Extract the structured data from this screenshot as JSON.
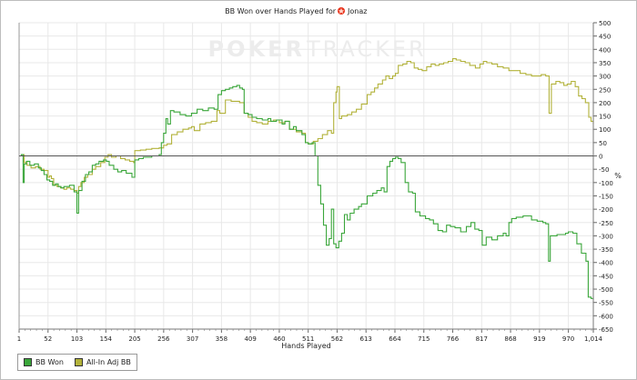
{
  "chart_data": {
    "type": "line",
    "title": "BB Won over Hands Played for",
    "player": "Jonaz",
    "xlabel": "Hands Played",
    "ylabel": "%",
    "watermark": {
      "left": "POKER",
      "right": "TRACKER"
    },
    "xlim": [
      1,
      1014
    ],
    "ylim": [
      -650,
      500
    ],
    "x_ticks": [
      1,
      52,
      103,
      154,
      205,
      256,
      307,
      358,
      409,
      460,
      511,
      562,
      613,
      664,
      715,
      766,
      817,
      868,
      919,
      970,
      1014
    ],
    "x_tick_labels": [
      "1",
      "52",
      "103",
      "154",
      "205",
      "256",
      "307",
      "358",
      "409",
      "460",
      "511",
      "562",
      "613",
      "664",
      "715",
      "766",
      "817",
      "868",
      "919",
      "970",
      "1,014"
    ],
    "y_ticks": [
      500,
      450,
      400,
      350,
      300,
      250,
      200,
      150,
      100,
      50,
      0,
      -50,
      -100,
      -150,
      -200,
      -250,
      -300,
      -350,
      -400,
      -450,
      -500,
      -550,
      -600,
      -650
    ],
    "grid": true,
    "legend_position": "bottom-left",
    "colors": {
      "bb_won": "#3aa63a",
      "all_in_adj": "#b2b23a",
      "zero_line": "#555555"
    },
    "series": [
      {
        "name": "BB Won",
        "color": "#3aa63a",
        "points": [
          [
            1,
            0
          ],
          [
            5,
            5
          ],
          [
            8,
            -100
          ],
          [
            10,
            -30
          ],
          [
            14,
            -20
          ],
          [
            20,
            -35
          ],
          [
            28,
            -30
          ],
          [
            35,
            -45
          ],
          [
            40,
            -55
          ],
          [
            45,
            -70
          ],
          [
            50,
            -90
          ],
          [
            55,
            -95
          ],
          [
            60,
            -110
          ],
          [
            65,
            -105
          ],
          [
            70,
            -115
          ],
          [
            75,
            -120
          ],
          [
            80,
            -115
          ],
          [
            90,
            -110
          ],
          [
            98,
            -135
          ],
          [
            103,
            -215
          ],
          [
            106,
            -130
          ],
          [
            112,
            -95
          ],
          [
            118,
            -70
          ],
          [
            124,
            -60
          ],
          [
            130,
            -35
          ],
          [
            136,
            -30
          ],
          [
            142,
            -20
          ],
          [
            150,
            -15
          ],
          [
            155,
            -20
          ],
          [
            160,
            -35
          ],
          [
            168,
            -50
          ],
          [
            175,
            -60
          ],
          [
            182,
            -55
          ],
          [
            190,
            -65
          ],
          [
            200,
            -80
          ],
          [
            205,
            -15
          ],
          [
            212,
            -10
          ],
          [
            220,
            -5
          ],
          [
            235,
            0
          ],
          [
            248,
            5
          ],
          [
            252,
            50
          ],
          [
            256,
            85
          ],
          [
            260,
            140
          ],
          [
            263,
            120
          ],
          [
            268,
            170
          ],
          [
            274,
            165
          ],
          [
            285,
            155
          ],
          [
            295,
            150
          ],
          [
            305,
            160
          ],
          [
            315,
            175
          ],
          [
            325,
            170
          ],
          [
            335,
            180
          ],
          [
            345,
            175
          ],
          [
            352,
            230
          ],
          [
            358,
            245
          ],
          [
            365,
            250
          ],
          [
            372,
            255
          ],
          [
            378,
            260
          ],
          [
            385,
            265
          ],
          [
            390,
            255
          ],
          [
            395,
            250
          ],
          [
            398,
            160
          ],
          [
            405,
            155
          ],
          [
            412,
            145
          ],
          [
            420,
            140
          ],
          [
            430,
            135
          ],
          [
            440,
            140
          ],
          [
            445,
            130
          ],
          [
            455,
            135
          ],
          [
            465,
            120
          ],
          [
            470,
            130
          ],
          [
            478,
            100
          ],
          [
            485,
            110
          ],
          [
            490,
            95
          ],
          [
            500,
            80
          ],
          [
            506,
            50
          ],
          [
            511,
            45
          ],
          [
            518,
            50
          ],
          [
            523,
            0
          ],
          [
            528,
            -110
          ],
          [
            533,
            -180
          ],
          [
            538,
            -260
          ],
          [
            543,
            -335
          ],
          [
            548,
            -310
          ],
          [
            552,
            -200
          ],
          [
            556,
            -330
          ],
          [
            560,
            -345
          ],
          [
            565,
            -320
          ],
          [
            570,
            -290
          ],
          [
            575,
            -220
          ],
          [
            580,
            -240
          ],
          [
            585,
            -215
          ],
          [
            592,
            -200
          ],
          [
            600,
            -190
          ],
          [
            605,
            -180
          ],
          [
            615,
            -150
          ],
          [
            625,
            -140
          ],
          [
            632,
            -130
          ],
          [
            640,
            -120
          ],
          [
            645,
            -135
          ],
          [
            650,
            -40
          ],
          [
            655,
            -20
          ],
          [
            660,
            -10
          ],
          [
            665,
            -5
          ],
          [
            670,
            -10
          ],
          [
            675,
            -25
          ],
          [
            682,
            -100
          ],
          [
            688,
            -135
          ],
          [
            695,
            -140
          ],
          [
            700,
            -210
          ],
          [
            708,
            -225
          ],
          [
            718,
            -235
          ],
          [
            725,
            -240
          ],
          [
            732,
            -255
          ],
          [
            740,
            -280
          ],
          [
            748,
            -285
          ],
          [
            755,
            -260
          ],
          [
            762,
            -265
          ],
          [
            770,
            -270
          ],
          [
            780,
            -285
          ],
          [
            790,
            -265
          ],
          [
            798,
            -250
          ],
          [
            805,
            -275
          ],
          [
            812,
            -280
          ],
          [
            818,
            -335
          ],
          [
            825,
            -305
          ],
          [
            835,
            -315
          ],
          [
            845,
            -300
          ],
          [
            855,
            -290
          ],
          [
            860,
            -300
          ],
          [
            865,
            -250
          ],
          [
            870,
            -235
          ],
          [
            878,
            -230
          ],
          [
            890,
            -225
          ],
          [
            905,
            -240
          ],
          [
            915,
            -245
          ],
          [
            925,
            -250
          ],
          [
            930,
            -255
          ],
          [
            935,
            -395
          ],
          [
            938,
            -300
          ],
          [
            950,
            -295
          ],
          [
            965,
            -290
          ],
          [
            970,
            -285
          ],
          [
            978,
            -290
          ],
          [
            985,
            -330
          ],
          [
            993,
            -365
          ],
          [
            997,
            -365
          ],
          [
            1001,
            -395
          ],
          [
            1005,
            -530
          ],
          [
            1010,
            -535
          ],
          [
            1014,
            -540
          ]
        ]
      },
      {
        "name": "All-In Adj BB",
        "color": "#b2b23a",
        "points": [
          [
            1,
            0
          ],
          [
            5,
            5
          ],
          [
            10,
            -25
          ],
          [
            15,
            -35
          ],
          [
            22,
            -45
          ],
          [
            30,
            -40
          ],
          [
            38,
            -50
          ],
          [
            45,
            -55
          ],
          [
            52,
            -80
          ],
          [
            55,
            -75
          ],
          [
            58,
            -85
          ],
          [
            62,
            -110
          ],
          [
            68,
            -115
          ],
          [
            74,
            -120
          ],
          [
            80,
            -125
          ],
          [
            85,
            -120
          ],
          [
            92,
            -125
          ],
          [
            98,
            -130
          ],
          [
            103,
            -140
          ],
          [
            106,
            -115
          ],
          [
            110,
            -100
          ],
          [
            116,
            -80
          ],
          [
            122,
            -70
          ],
          [
            130,
            -50
          ],
          [
            136,
            -40
          ],
          [
            145,
            -25
          ],
          [
            152,
            -5
          ],
          [
            158,
            5
          ],
          [
            164,
            -5
          ],
          [
            172,
            0
          ],
          [
            180,
            -10
          ],
          [
            188,
            -15
          ],
          [
            196,
            -20
          ],
          [
            203,
            -25
          ],
          [
            205,
            20
          ],
          [
            215,
            22
          ],
          [
            225,
            25
          ],
          [
            235,
            28
          ],
          [
            248,
            30
          ],
          [
            256,
            40
          ],
          [
            262,
            45
          ],
          [
            270,
            80
          ],
          [
            280,
            90
          ],
          [
            290,
            100
          ],
          [
            300,
            105
          ],
          [
            305,
            110
          ],
          [
            310,
            95
          ],
          [
            320,
            120
          ],
          [
            330,
            125
          ],
          [
            340,
            130
          ],
          [
            350,
            170
          ],
          [
            355,
            160
          ],
          [
            365,
            210
          ],
          [
            375,
            205
          ],
          [
            390,
            200
          ],
          [
            398,
            160
          ],
          [
            405,
            145
          ],
          [
            412,
            130
          ],
          [
            420,
            125
          ],
          [
            430,
            120
          ],
          [
            440,
            130
          ],
          [
            450,
            135
          ],
          [
            460,
            125
          ],
          [
            470,
            130
          ],
          [
            478,
            100
          ],
          [
            490,
            90
          ],
          [
            500,
            85
          ],
          [
            506,
            50
          ],
          [
            511,
            45
          ],
          [
            520,
            55
          ],
          [
            528,
            65
          ],
          [
            536,
            80
          ],
          [
            545,
            95
          ],
          [
            552,
            85
          ],
          [
            556,
            200
          ],
          [
            560,
            240
          ],
          [
            562,
            260
          ],
          [
            566,
            140
          ],
          [
            570,
            150
          ],
          [
            580,
            155
          ],
          [
            588,
            165
          ],
          [
            596,
            175
          ],
          [
            605,
            195
          ],
          [
            615,
            230
          ],
          [
            622,
            240
          ],
          [
            628,
            255
          ],
          [
            634,
            270
          ],
          [
            642,
            285
          ],
          [
            648,
            300
          ],
          [
            654,
            290
          ],
          [
            660,
            300
          ],
          [
            665,
            310
          ],
          [
            670,
            340
          ],
          [
            678,
            345
          ],
          [
            685,
            355
          ],
          [
            692,
            350
          ],
          [
            698,
            330
          ],
          [
            705,
            325
          ],
          [
            712,
            320
          ],
          [
            720,
            335
          ],
          [
            728,
            345
          ],
          [
            735,
            340
          ],
          [
            742,
            345
          ],
          [
            750,
            350
          ],
          [
            758,
            355
          ],
          [
            766,
            365
          ],
          [
            772,
            360
          ],
          [
            780,
            355
          ],
          [
            788,
            350
          ],
          [
            796,
            340
          ],
          [
            806,
            330
          ],
          [
            814,
            345
          ],
          [
            820,
            355
          ],
          [
            826,
            350
          ],
          [
            835,
            345
          ],
          [
            845,
            335
          ],
          [
            855,
            330
          ],
          [
            865,
            320
          ],
          [
            875,
            320
          ],
          [
            885,
            310
          ],
          [
            895,
            305
          ],
          [
            905,
            300
          ],
          [
            915,
            300
          ],
          [
            922,
            305
          ],
          [
            930,
            300
          ],
          [
            936,
            160
          ],
          [
            940,
            270
          ],
          [
            948,
            280
          ],
          [
            955,
            275
          ],
          [
            962,
            265
          ],
          [
            968,
            270
          ],
          [
            975,
            280
          ],
          [
            982,
            260
          ],
          [
            988,
            225
          ],
          [
            994,
            215
          ],
          [
            1000,
            200
          ],
          [
            1006,
            145
          ],
          [
            1010,
            130
          ],
          [
            1014,
            120
          ]
        ]
      }
    ]
  }
}
